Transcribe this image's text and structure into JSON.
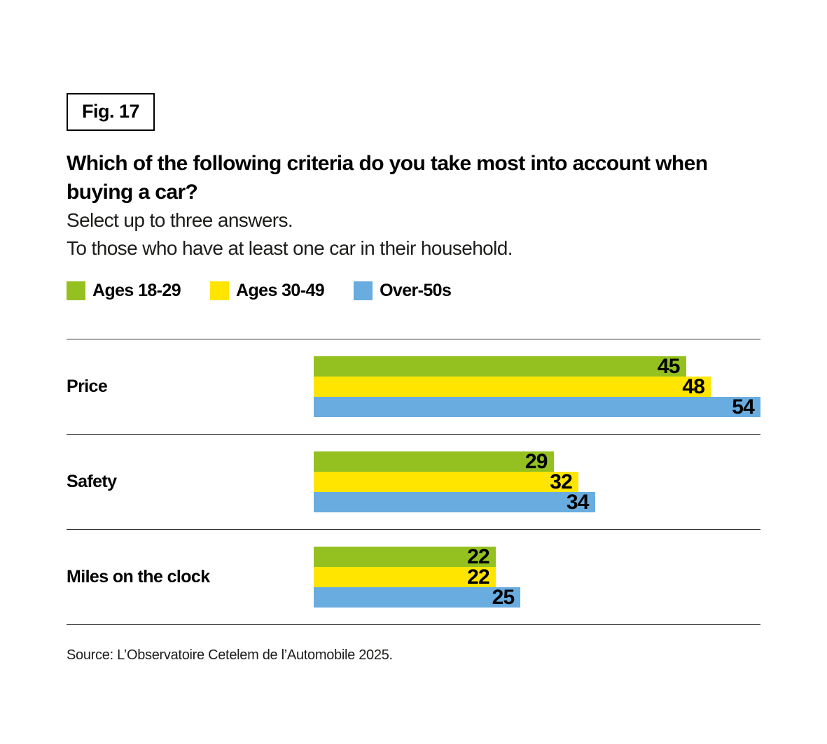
{
  "figure": {
    "label": "Fig. 17"
  },
  "title": "Which of the following criteria do you take most into account when buying a car?",
  "subtitles": {
    "line1": "Select up to three answers.",
    "line2": "To those who have at least one car in their household."
  },
  "legend": [
    {
      "label": "Ages 18-29",
      "color": "#94C11F"
    },
    {
      "label": "Ages 30-49",
      "color": "#FFE500"
    },
    {
      "label": "Over-50s",
      "color": "#69ACDF"
    }
  ],
  "colors": {
    "green": "#94C11F",
    "yellow": "#FFE500",
    "blue": "#69ACDF",
    "text": "#000000",
    "rule": "#333333"
  },
  "chart_data": {
    "type": "bar",
    "orientation": "horizontal",
    "title": "Which of the following criteria do you take most into account when buying a car?",
    "categories": [
      "Price",
      "Safety",
      "Miles on the clock"
    ],
    "series": [
      {
        "name": "Ages 18-29",
        "color": "#94C11F",
        "values": [
          45,
          29,
          22
        ]
      },
      {
        "name": "Ages 30-49",
        "color": "#FFE500",
        "values": [
          48,
          32,
          22
        ]
      },
      {
        "name": "Over-50s",
        "color": "#69ACDF",
        "values": [
          54,
          34,
          25
        ]
      }
    ],
    "xlim": [
      0,
      54
    ],
    "grid": false,
    "value_labels": "inside-end",
    "legend_position": "top"
  },
  "source": "Source: L’Observatoire Cetelem de l’Automobile 2025."
}
